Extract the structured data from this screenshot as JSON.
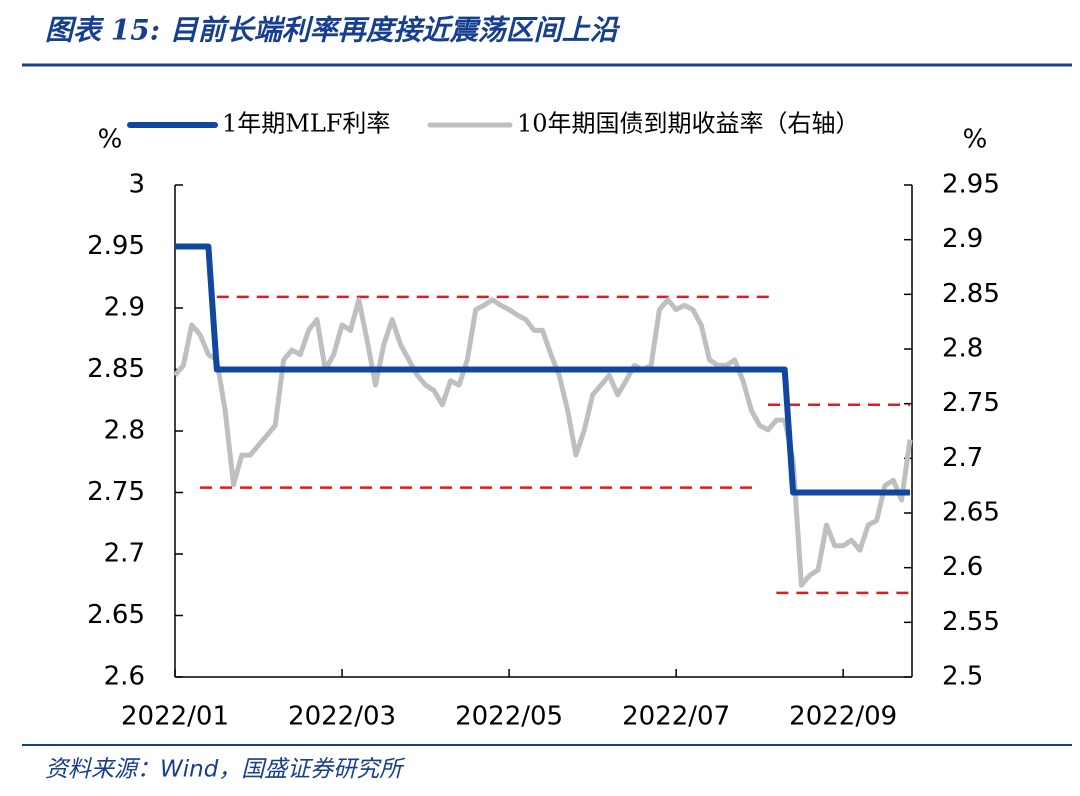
{
  "chart_data": {
    "type": "line",
    "title": "图表 15: 目前长端利率再度接近震荡区间上沿",
    "source": "资料来源：Wind，国盛证券研究所",
    "y_unit": "%",
    "y2_unit": "%",
    "categories": [
      "2022/01",
      null,
      null,
      null,
      null,
      null,
      null,
      null,
      null,
      null,
      null,
      null,
      null,
      null,
      null,
      null,
      null,
      null,
      null,
      null,
      "2022/03",
      null,
      null,
      null,
      null,
      null,
      null,
      null,
      null,
      null,
      null,
      null,
      null,
      null,
      null,
      null,
      null,
      null,
      null,
      null,
      "2022/05",
      null,
      null,
      null,
      null,
      null,
      null,
      null,
      null,
      null,
      null,
      null,
      null,
      null,
      null,
      null,
      null,
      null,
      null,
      null,
      "2022/07",
      null,
      null,
      null,
      null,
      null,
      null,
      null,
      null,
      null,
      null,
      null,
      null,
      null,
      null,
      null,
      null,
      null,
      null,
      null,
      "2022/09",
      null,
      null,
      null,
      null,
      null,
      null,
      null,
      null
    ],
    "series": [
      {
        "name": "1年期MLF利率",
        "color": "#0f47a1",
        "axis": "y",
        "values": [
          2.95,
          2.95,
          2.95,
          2.95,
          2.95,
          2.85,
          2.85,
          2.85,
          2.85,
          2.85,
          2.85,
          2.85,
          2.85,
          2.85,
          2.85,
          2.85,
          2.85,
          2.85,
          2.85,
          2.85,
          2.85,
          2.85,
          2.85,
          2.85,
          2.85,
          2.85,
          2.85,
          2.85,
          2.85,
          2.85,
          2.85,
          2.85,
          2.85,
          2.85,
          2.85,
          2.85,
          2.85,
          2.85,
          2.85,
          2.85,
          2.85,
          2.85,
          2.85,
          2.85,
          2.85,
          2.85,
          2.85,
          2.85,
          2.85,
          2.85,
          2.85,
          2.85,
          2.85,
          2.85,
          2.85,
          2.85,
          2.85,
          2.85,
          2.85,
          2.85,
          2.85,
          2.85,
          2.85,
          2.85,
          2.85,
          2.85,
          2.85,
          2.85,
          2.85,
          2.85,
          2.85,
          2.85,
          2.85,
          2.85,
          2.75,
          2.75,
          2.75,
          2.75,
          2.75,
          2.75,
          2.75,
          2.75,
          2.75,
          2.75,
          2.75,
          2.75,
          2.75,
          2.75,
          2.75
        ]
      },
      {
        "name": "10年期国债到期收益率（右轴）",
        "color": "#bfbfbf",
        "axis": "y2",
        "values": [
          2.776,
          2.785,
          2.822,
          2.813,
          2.795,
          2.79,
          2.744,
          2.676,
          2.703,
          2.703,
          2.712,
          2.721,
          2.73,
          2.79,
          2.799,
          2.795,
          2.817,
          2.827,
          2.781,
          2.795,
          2.822,
          2.817,
          2.845,
          2.808,
          2.767,
          2.804,
          2.827,
          2.804,
          2.79,
          2.776,
          2.767,
          2.762,
          2.749,
          2.771,
          2.767,
          2.79,
          2.836,
          2.84,
          2.845,
          2.84,
          2.836,
          2.831,
          2.827,
          2.817,
          2.817,
          2.795,
          2.776,
          2.744,
          2.703,
          2.726,
          2.758,
          2.767,
          2.776,
          2.758,
          2.771,
          2.785,
          2.781,
          2.785,
          2.836,
          2.845,
          2.836,
          2.84,
          2.836,
          2.822,
          2.79,
          2.785,
          2.785,
          2.79,
          2.771,
          2.744,
          2.73,
          2.726,
          2.735,
          2.735,
          2.698,
          2.584,
          2.593,
          2.598,
          2.639,
          2.62,
          2.62,
          2.625,
          2.616,
          2.639,
          2.643,
          2.675,
          2.68,
          2.662,
          2.717
        ]
      }
    ],
    "reference_lines": [
      {
        "axis": "y",
        "value": 2.909,
        "from": 5,
        "to": 72,
        "color": "#e8191c"
      },
      {
        "axis": "y",
        "value": 2.754,
        "from": 3,
        "to": 70,
        "color": "#e8191c"
      },
      {
        "axis": "y2",
        "value": 2.749,
        "from": 71,
        "to": 88,
        "color": "#e8191c"
      },
      {
        "axis": "y2",
        "value": 2.577,
        "from": 72,
        "to": 88,
        "color": "#e8191c"
      }
    ],
    "ylim": [
      2.6,
      3
    ],
    "yticks": [
      2.6,
      2.65,
      2.7,
      2.75,
      2.8,
      2.85,
      2.9,
      2.95,
      3
    ],
    "y2lim": [
      2.5,
      2.95
    ],
    "y2ticks": [
      2.5,
      2.55,
      2.6,
      2.65,
      2.7,
      2.75,
      2.8,
      2.85,
      2.9,
      2.95
    ],
    "legend": "top"
  }
}
